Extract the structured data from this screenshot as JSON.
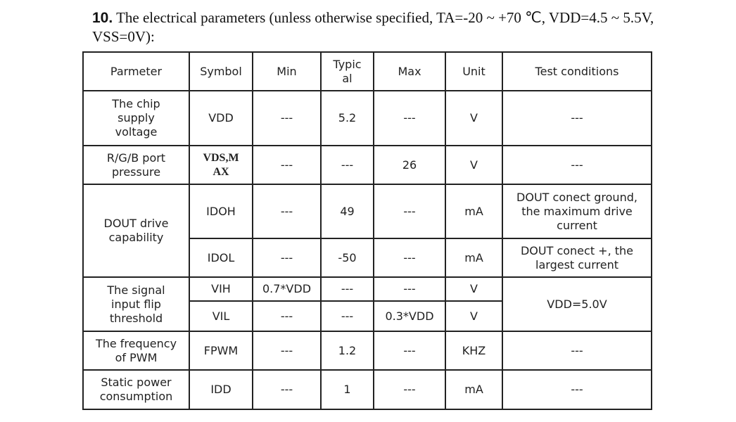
{
  "heading": {
    "number": "10.",
    "text": " The electrical parameters (unless otherwise specified, TA=-20 ~ +70 ℃, VDD=4.5 ~ 5.5V, VSS=0V):"
  },
  "table": {
    "headers": {
      "parameter": "Parmeter",
      "symbol": "Symbol",
      "min": "Min",
      "typical": "Typic al",
      "max": "Max",
      "unit": "Unit",
      "conditions": "Test conditions"
    },
    "rows": {
      "vdd": {
        "parameter": "The chip supply voltage",
        "symbol": "VDD",
        "min": "---",
        "typical": "5.2",
        "max": "---",
        "unit": "V",
        "conditions": "---"
      },
      "vds": {
        "parameter": "R/G/B port pressure",
        "symbol": "VDS,M AX",
        "min": "---",
        "typical": "---",
        "max": "26",
        "unit": "V",
        "conditions": "---"
      },
      "dout": {
        "parameter": "DOUT drive capability",
        "idoh": {
          "symbol": "IDOH",
          "min": "---",
          "typical": "49",
          "max": "---",
          "unit": "mA",
          "conditions": "DOUT conect ground, the maximum drive current"
        },
        "idol": {
          "symbol": "IDOL",
          "min": "---",
          "typical": "-50",
          "max": "---",
          "unit": "mA",
          "conditions": "DOUT conect +, the largest current"
        }
      },
      "threshold": {
        "parameter": "The signal input flip threshold",
        "conditions": "VDD=5.0V",
        "vih": {
          "symbol": "VIH",
          "min": "0.7*VDD",
          "typical": "---",
          "max": "---",
          "unit": "V"
        },
        "vil": {
          "symbol": "VIL",
          "min": "---",
          "typical": "---",
          "max": "0.3*VDD",
          "unit": "V"
        }
      },
      "pwm": {
        "parameter": "The frequency of PWM",
        "symbol": "FPWM",
        "min": "---",
        "typical": "1.2",
        "max": "---",
        "unit": "KHZ",
        "conditions": "---"
      },
      "idd": {
        "parameter": "Static power consumption",
        "symbol": "IDD",
        "min": "---",
        "typical": "1",
        "max": "---",
        "unit": "mA",
        "conditions": "---"
      }
    }
  }
}
